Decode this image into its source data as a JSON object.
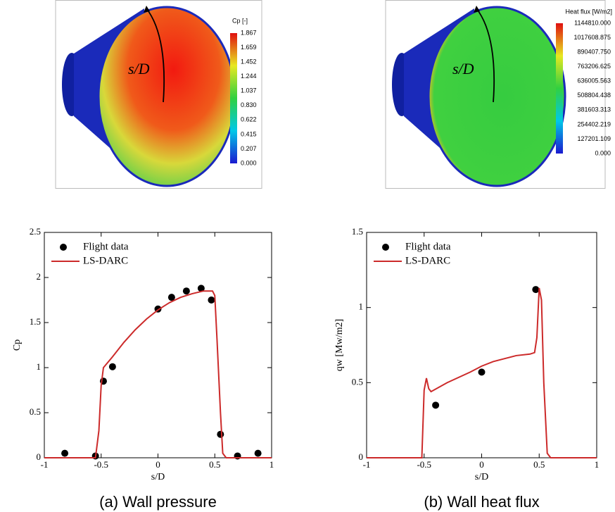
{
  "chart_data": [
    {
      "type": "line",
      "xlabel": "s/D",
      "ylabel": "Cp",
      "caption": "(a) Wall pressure",
      "xlim": [
        -1,
        1
      ],
      "xticks": [
        -1,
        -0.5,
        0,
        0.5,
        1
      ],
      "ylim": [
        0,
        2.5
      ],
      "yticks": [
        0,
        0.5,
        1,
        1.5,
        2,
        2.5
      ],
      "legend": "upper-left",
      "series": [
        {
          "name": "Flight data",
          "color": "#000000",
          "style": "marker",
          "x": [
            -0.82,
            -0.55,
            -0.48,
            -0.4,
            0,
            0.12,
            0.25,
            0.38,
            0.47,
            0.55,
            0.7,
            0.88
          ],
          "values": [
            0.05,
            0.02,
            0.85,
            1.01,
            1.65,
            1.78,
            1.85,
            1.88,
            1.75,
            0.26,
            0.02,
            0.05
          ]
        },
        {
          "name": "LS-DARC",
          "color": "#cc2a2a",
          "style": "line",
          "x": [
            -1,
            -0.55,
            -0.52,
            -0.5,
            -0.48,
            -0.4,
            -0.3,
            -0.2,
            -0.1,
            0,
            0.1,
            0.2,
            0.3,
            0.4,
            0.48,
            0.5,
            0.52,
            0.55,
            0.57,
            0.6,
            1
          ],
          "values": [
            0,
            0,
            0.3,
            0.8,
            1.0,
            1.12,
            1.28,
            1.42,
            1.54,
            1.64,
            1.72,
            1.78,
            1.82,
            1.85,
            1.85,
            1.8,
            1.3,
            0.5,
            0.05,
            0,
            0
          ]
        }
      ]
    },
    {
      "type": "line",
      "xlabel": "s/D",
      "ylabel": "qw [Mw/m2]",
      "caption": "(b) Wall heat flux",
      "xlim": [
        -1,
        1
      ],
      "xticks": [
        -1,
        -0.5,
        0,
        0.5,
        1
      ],
      "ylim": [
        0,
        1.5
      ],
      "yticks": [
        0,
        0.5,
        1,
        1.5
      ],
      "legend": "upper-left",
      "series": [
        {
          "name": "Flight data",
          "color": "#000000",
          "style": "marker",
          "x": [
            -0.4,
            0,
            0.47
          ],
          "values": [
            0.35,
            0.57,
            1.12
          ]
        },
        {
          "name": "LS-DARC",
          "color": "#cc2a2a",
          "style": "line",
          "x": [
            -1,
            -0.52,
            -0.5,
            -0.48,
            -0.46,
            -0.44,
            -0.3,
            -0.1,
            0,
            0.1,
            0.2,
            0.3,
            0.42,
            0.46,
            0.48,
            0.5,
            0.52,
            0.54,
            0.57,
            0.6,
            1
          ],
          "values": [
            0,
            0,
            0.45,
            0.53,
            0.46,
            0.44,
            0.5,
            0.57,
            0.61,
            0.64,
            0.66,
            0.68,
            0.69,
            0.7,
            0.8,
            1.13,
            1.05,
            0.5,
            0.03,
            0,
            0
          ]
        }
      ]
    }
  ],
  "renders": [
    {
      "title": "Cp [-]",
      "annotation": "s/D",
      "labels": [
        "1.867",
        "1.659",
        "1.452",
        "1.244",
        "1.037",
        "0.830",
        "0.622",
        "0.415",
        "0.207",
        "0.000"
      ]
    },
    {
      "title": "Heat flux [W/m2]",
      "annotation": "s/D",
      "labels": [
        "1144810.000",
        "1017608.875",
        "890407.750",
        "763206.625",
        "636005.563",
        "508804.438",
        "381603.313",
        "254402.219",
        "127201.109",
        "0.000"
      ]
    }
  ]
}
